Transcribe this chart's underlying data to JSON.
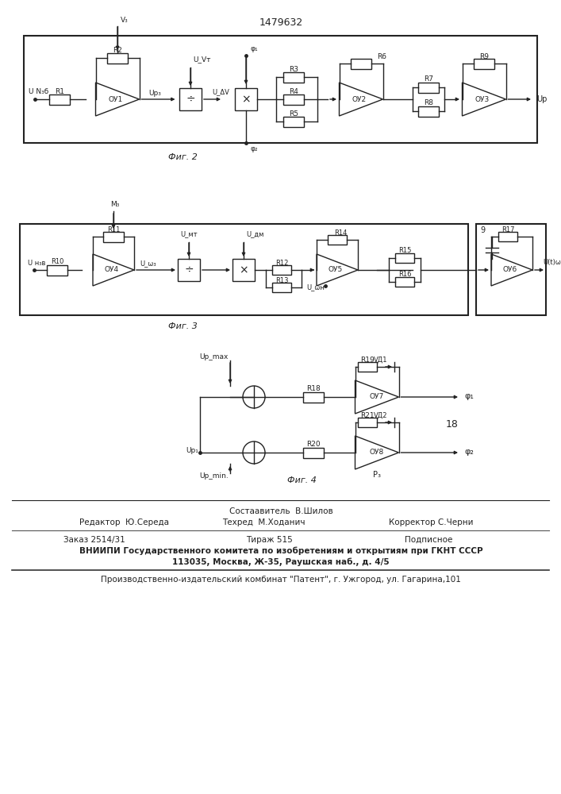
{
  "title": "1479632",
  "fig2_caption": "Фиг. 2",
  "fig3_caption": "Фиг. 3",
  "fig4_caption": "Фиг. 4",
  "footer_composer": "Состаавитель  В.Шилов",
  "footer_editor": "Редактор  Ю.Середа",
  "footer_techred": "Техред  М.Ходанич",
  "footer_corrector": "Корректор С.Черни",
  "footer_order": "Заказ 2514/31",
  "footer_tirazh": "Тираж 515",
  "footer_podp": "Подписное",
  "footer_vnipi": "ВНИИПИ Государственного комитета по изобретениям и открытиям при ГКНТ СССР",
  "footer_addr": "113035, Москва, Ж-35, Раушская наб., д. 4/5",
  "footer_patent": "Производственно-издательский комбинат \"Патент\", г. Ужгород, ул. Гагарина,101"
}
